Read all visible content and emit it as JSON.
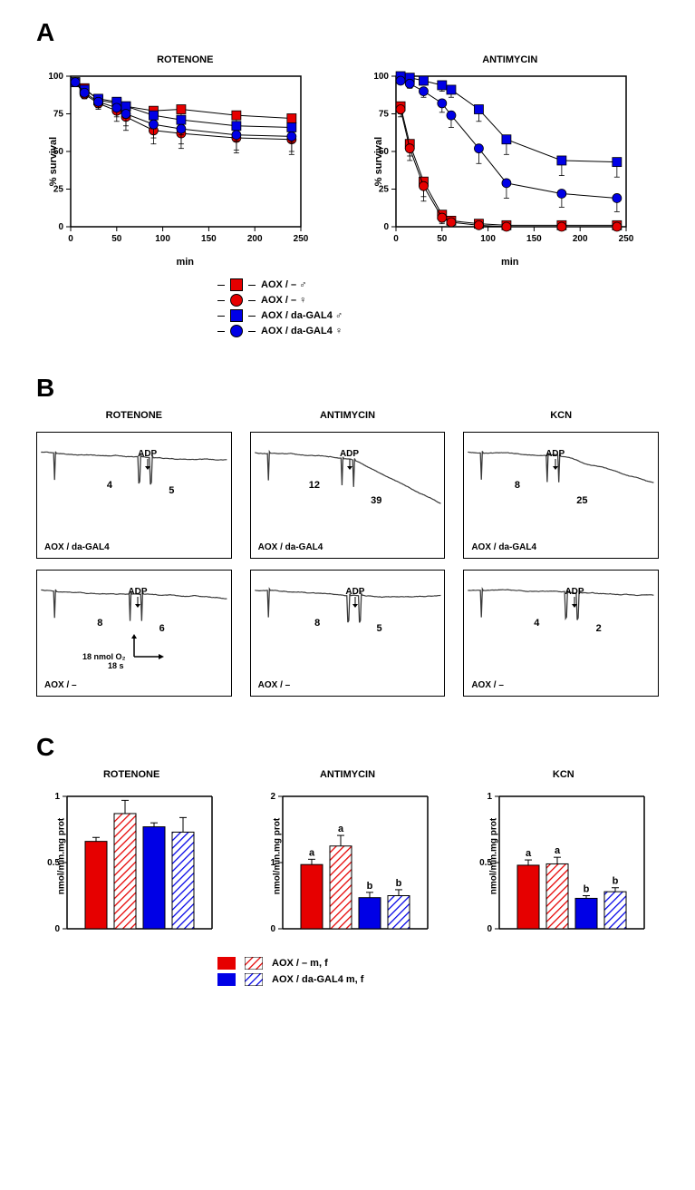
{
  "colors": {
    "red": "#e60000",
    "blue": "#0000e6",
    "black": "#000000",
    "bg": "#ffffff",
    "trace_fill": "#3a3a3a"
  },
  "panelA": {
    "label": "A",
    "charts": [
      {
        "title": "ROTENONE",
        "ylabel": "% survival",
        "xlabel": "min",
        "xlim": [
          0,
          250
        ],
        "xtick_step": 50,
        "ylim": [
          0,
          100
        ],
        "ytick_step": 25,
        "series": [
          {
            "name": "AOX/- m",
            "marker": "square",
            "color": "#e60000",
            "points": [
              [
                5,
                96
              ],
              [
                15,
                92
              ],
              [
                30,
                84
              ],
              [
                50,
                82
              ],
              [
                60,
                80
              ],
              [
                90,
                77
              ],
              [
                120,
                78
              ],
              [
                180,
                74
              ],
              [
                240,
                72
              ]
            ],
            "err": [
              2,
              3,
              4,
              7,
              8,
              9,
              9,
              11,
              13
            ]
          },
          {
            "name": "AOX/- f",
            "marker": "circle",
            "color": "#e60000",
            "points": [
              [
                5,
                96
              ],
              [
                15,
                88
              ],
              [
                30,
                82
              ],
              [
                50,
                77
              ],
              [
                60,
                73
              ],
              [
                90,
                64
              ],
              [
                120,
                62
              ],
              [
                180,
                59
              ],
              [
                240,
                58
              ]
            ],
            "err": [
              2,
              3,
              4,
              7,
              9,
              9,
              10,
              10,
              10
            ]
          },
          {
            "name": "AOX/daGAL4 m",
            "marker": "square",
            "color": "#0000e6",
            "points": [
              [
                5,
                96
              ],
              [
                15,
                91
              ],
              [
                30,
                85
              ],
              [
                50,
                83
              ],
              [
                60,
                80
              ],
              [
                90,
                74
              ],
              [
                120,
                71
              ],
              [
                180,
                67
              ],
              [
                240,
                66
              ]
            ],
            "err": [
              2,
              3,
              4,
              6,
              8,
              9,
              10,
              10,
              10
            ]
          },
          {
            "name": "AOX/daGAL4 f",
            "marker": "circle",
            "color": "#0000e6",
            "points": [
              [
                5,
                96
              ],
              [
                15,
                89
              ],
              [
                30,
                83
              ],
              [
                50,
                79
              ],
              [
                60,
                75
              ],
              [
                90,
                68
              ],
              [
                120,
                65
              ],
              [
                180,
                61
              ],
              [
                240,
                60
              ]
            ],
            "err": [
              2,
              3,
              4,
              6,
              8,
              9,
              10,
              10,
              10
            ]
          }
        ]
      },
      {
        "title": "ANTIMYCIN",
        "ylabel": "% survival",
        "xlabel": "min",
        "xlim": [
          0,
          250
        ],
        "xtick_step": 50,
        "ylim": [
          0,
          100
        ],
        "ytick_step": 25,
        "series": [
          {
            "name": "AOX/- m",
            "marker": "square",
            "color": "#e60000",
            "points": [
              [
                5,
                80
              ],
              [
                15,
                55
              ],
              [
                30,
                30
              ],
              [
                50,
                8
              ],
              [
                60,
                4
              ],
              [
                90,
                2
              ],
              [
                120,
                1
              ],
              [
                180,
                1
              ],
              [
                240,
                1
              ]
            ],
            "err": [
              5,
              8,
              10,
              5,
              3,
              2,
              2,
              2,
              2
            ]
          },
          {
            "name": "AOX/- f",
            "marker": "circle",
            "color": "#e60000",
            "points": [
              [
                5,
                78
              ],
              [
                15,
                52
              ],
              [
                30,
                27
              ],
              [
                50,
                6
              ],
              [
                60,
                3
              ],
              [
                90,
                1
              ],
              [
                120,
                0
              ],
              [
                180,
                0
              ],
              [
                240,
                0
              ]
            ],
            "err": [
              5,
              8,
              10,
              4,
              3,
              2,
              2,
              2,
              2
            ]
          },
          {
            "name": "AOX/daGAL4 m",
            "marker": "square",
            "color": "#0000e6",
            "points": [
              [
                5,
                100
              ],
              [
                15,
                99
              ],
              [
                30,
                97
              ],
              [
                50,
                94
              ],
              [
                60,
                91
              ],
              [
                90,
                78
              ],
              [
                120,
                58
              ],
              [
                180,
                44
              ],
              [
                240,
                43
              ]
            ],
            "err": [
              2,
              2,
              3,
              4,
              5,
              8,
              10,
              10,
              10
            ]
          },
          {
            "name": "AOX/daGAL4 f",
            "marker": "circle",
            "color": "#0000e6",
            "points": [
              [
                5,
                97
              ],
              [
                15,
                95
              ],
              [
                30,
                90
              ],
              [
                50,
                82
              ],
              [
                60,
                74
              ],
              [
                90,
                52
              ],
              [
                120,
                29
              ],
              [
                180,
                22
              ],
              [
                240,
                19
              ]
            ],
            "err": [
              2,
              3,
              4,
              6,
              8,
              10,
              10,
              9,
              9
            ]
          }
        ]
      }
    ],
    "legend": [
      {
        "marker": "square",
        "color": "#e60000",
        "label": "AOX / –",
        "sex": "m"
      },
      {
        "marker": "circle",
        "color": "#e60000",
        "label": "AOX / –",
        "sex": "f"
      },
      {
        "marker": "square",
        "color": "#0000e6",
        "label": "AOX / da-GAL4",
        "sex": "m"
      },
      {
        "marker": "circle",
        "color": "#0000e6",
        "label": "AOX / da-GAL4",
        "sex": "f"
      }
    ]
  },
  "panelB": {
    "label": "B",
    "titles": [
      "ROTENONE",
      "ANTIMYCIN",
      "KCN"
    ],
    "adp_label": "ADP",
    "genotype_top": "AOX / da-GAL4",
    "genotype_bottom": "AOX / –",
    "traces": {
      "top": [
        {
          "pre": 4,
          "post": 5,
          "adp_x": 0.58,
          "shape": "flat_flat"
        },
        {
          "pre": 12,
          "post": 39,
          "adp_x": 0.52,
          "shape": "gentle_steep"
        },
        {
          "pre": 8,
          "post": 25,
          "adp_x": 0.48,
          "shape": "gentle_steep"
        }
      ],
      "bottom": [
        {
          "pre": 8,
          "post": 6,
          "adp_x": 0.53,
          "shape": "flat_flat"
        },
        {
          "pre": 8,
          "post": 5,
          "adp_x": 0.55,
          "shape": "flat_flat"
        },
        {
          "pre": 4,
          "post": 2,
          "adp_x": 0.58,
          "shape": "flat_flat"
        }
      ]
    },
    "scale": {
      "y_label": "18 nmol O₂",
      "x_label": "18 s"
    }
  },
  "panelC": {
    "label": "C",
    "ylabel": "nmol/min.mg prot",
    "charts": [
      {
        "title": "ROTENONE",
        "ylim": [
          0,
          1
        ],
        "ytick_step": 0.5,
        "bars": [
          {
            "val": 0.66,
            "err": 0.03,
            "fill": "solid",
            "color": "#e60000",
            "sig": null
          },
          {
            "val": 0.87,
            "err": 0.1,
            "fill": "hatch",
            "color": "#e60000",
            "sig": null
          },
          {
            "val": 0.77,
            "err": 0.03,
            "fill": "solid",
            "color": "#0000e6",
            "sig": null
          },
          {
            "val": 0.73,
            "err": 0.11,
            "fill": "hatch",
            "color": "#0000e6",
            "sig": null
          }
        ]
      },
      {
        "title": "ANTIMYCIN",
        "ylim": [
          0,
          2
        ],
        "ytick_step": 1,
        "bars": [
          {
            "val": 0.97,
            "err": 0.08,
            "fill": "solid",
            "color": "#e60000",
            "sig": "a"
          },
          {
            "val": 1.25,
            "err": 0.16,
            "fill": "hatch",
            "color": "#e60000",
            "sig": "a"
          },
          {
            "val": 0.47,
            "err": 0.08,
            "fill": "solid",
            "color": "#0000e6",
            "sig": "b"
          },
          {
            "val": 0.5,
            "err": 0.09,
            "fill": "hatch",
            "color": "#0000e6",
            "sig": "b"
          }
        ]
      },
      {
        "title": "KCN",
        "ylim": [
          0,
          1
        ],
        "ytick_step": 0.5,
        "bars": [
          {
            "val": 0.48,
            "err": 0.04,
            "fill": "solid",
            "color": "#e60000",
            "sig": "a"
          },
          {
            "val": 0.49,
            "err": 0.05,
            "fill": "hatch",
            "color": "#e60000",
            "sig": "a"
          },
          {
            "val": 0.23,
            "err": 0.02,
            "fill": "solid",
            "color": "#0000e6",
            "sig": "b"
          },
          {
            "val": 0.28,
            "err": 0.03,
            "fill": "hatch",
            "color": "#0000e6",
            "sig": "b"
          }
        ]
      }
    ],
    "legend": [
      {
        "swatch1": "solid",
        "swatch2": "hatch",
        "color": "#e60000",
        "label": "AOX / –  m, f"
      },
      {
        "swatch1": "solid",
        "swatch2": "hatch",
        "color": "#0000e6",
        "label": "AOX / da-GAL4  m, f"
      }
    ]
  }
}
